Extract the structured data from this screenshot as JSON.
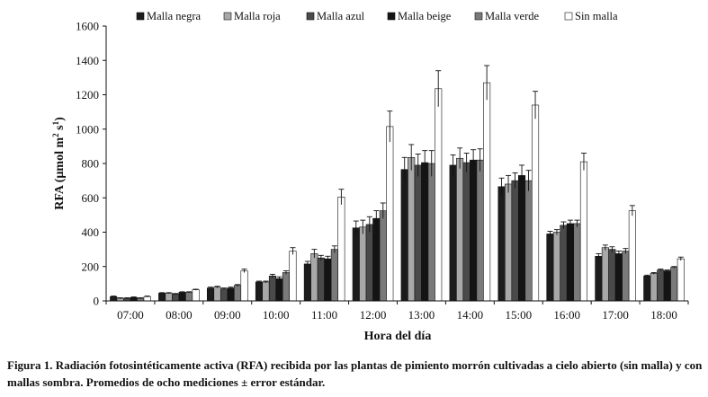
{
  "chart_data": {
    "type": "bar",
    "categories": [
      "07:00",
      "08:00",
      "09:00",
      "10:00",
      "11:00",
      "12:00",
      "13:00",
      "14:00",
      "15:00",
      "16:00",
      "17:00",
      "18:00"
    ],
    "series": [
      {
        "name": "Malla negra",
        "color": "#1c1c1c",
        "values": [
          25,
          45,
          75,
          110,
          215,
          425,
          765,
          790,
          665,
          390,
          260,
          145
        ],
        "errors": [
          3,
          3,
          5,
          5,
          15,
          40,
          70,
          60,
          50,
          15,
          15,
          5
        ]
      },
      {
        "name": "Malla roja",
        "color": "#a8a8a8",
        "values": [
          15,
          45,
          80,
          110,
          275,
          430,
          835,
          830,
          680,
          400,
          310,
          160
        ],
        "errors": [
          3,
          3,
          5,
          5,
          25,
          40,
          75,
          60,
          50,
          15,
          15,
          5
        ]
      },
      {
        "name": "Malla azul",
        "color": "#4a4a4a",
        "values": [
          15,
          40,
          70,
          145,
          250,
          445,
          790,
          805,
          700,
          440,
          300,
          180
        ],
        "errors": [
          3,
          3,
          5,
          10,
          15,
          45,
          65,
          55,
          45,
          20,
          15,
          5
        ]
      },
      {
        "name": "Malla beige",
        "color": "#141414",
        "values": [
          20,
          50,
          75,
          130,
          245,
          480,
          805,
          820,
          730,
          450,
          275,
          175
        ],
        "errors": [
          3,
          3,
          5,
          10,
          15,
          45,
          70,
          60,
          60,
          20,
          15,
          5
        ]
      },
      {
        "name": "Malla verde",
        "color": "#7a7a7a",
        "values": [
          15,
          50,
          90,
          165,
          300,
          525,
          800,
          820,
          700,
          450,
          290,
          195
        ],
        "errors": [
          3,
          3,
          5,
          10,
          20,
          45,
          75,
          65,
          60,
          20,
          15,
          5
        ]
      },
      {
        "name": "Sin malla",
        "color": "#ffffff",
        "values": [
          25,
          65,
          175,
          290,
          605,
          1015,
          1235,
          1270,
          1140,
          810,
          525,
          245
        ],
        "errors": [
          3,
          3,
          10,
          20,
          45,
          90,
          105,
          100,
          80,
          50,
          30,
          10
        ]
      }
    ],
    "xlabel": "Hora del día",
    "ylabel": "RFA (µmol m",
    "ylabel_sup1": "2",
    "ylabel_mid": " s",
    "ylabel_sup2": "1",
    "ylabel_end": ")",
    "ylim": [
      0,
      1600
    ],
    "yticks": [
      0,
      200,
      400,
      600,
      800,
      1000,
      1200,
      1400,
      1600
    ],
    "legend_position": "top"
  },
  "caption": "Figura 1. Radiación fotosintéticamente activa (RFA) recibida por las plantas de pimiento morrón cultivadas a cielo abierto (sin malla) y con mallas sombra. Promedios de ocho mediciones ± error estándar."
}
